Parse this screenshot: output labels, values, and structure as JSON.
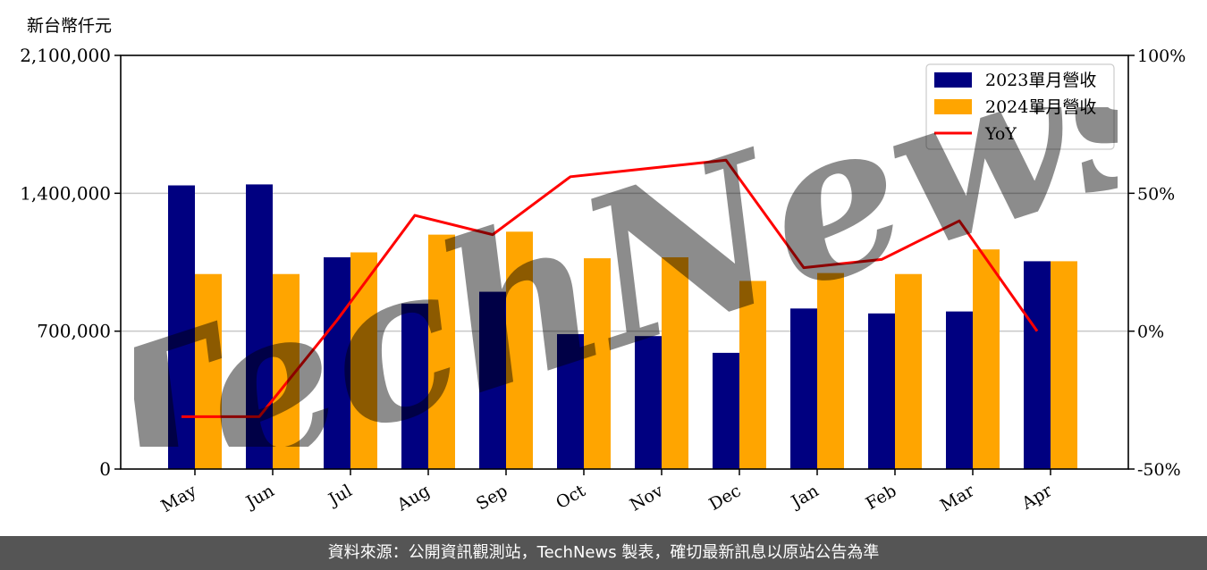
{
  "unit_label": "新台幣仟元",
  "source": "資料來源：公開資訊觀測站，TechNews 製表，確切最新訊息以原站公告為準",
  "watermark": "TechNews",
  "colors": {
    "series_2023": "#000080",
    "series_2024": "#FFA500",
    "yoy": "#FF0000",
    "grid": "#C8C8C8",
    "footer_bg": "#555555",
    "watermark": "#EFC9C9"
  },
  "chart_data": {
    "type": "bar",
    "categories": [
      "May",
      "Jun",
      "Jul",
      "Aug",
      "Sep",
      "Oct",
      "Nov",
      "Dec",
      "Jan",
      "Feb",
      "Mar",
      "Apr"
    ],
    "series": [
      {
        "name": "2023單月營收",
        "type": "bar",
        "axis": "left",
        "values": [
          1440000,
          1445000,
          1075000,
          840000,
          900000,
          685000,
          675000,
          590000,
          815000,
          790000,
          800000,
          1055000
        ]
      },
      {
        "name": "2024單月營收",
        "type": "bar",
        "axis": "left",
        "values": [
          990000,
          990000,
          1100000,
          1190000,
          1205000,
          1070000,
          1075000,
          955000,
          995000,
          990000,
          1115000,
          1055000
        ]
      },
      {
        "name": "YoY",
        "type": "line",
        "axis": "right",
        "values": [
          -31,
          -31,
          4,
          42,
          35,
          56,
          59,
          62,
          23,
          26,
          40,
          0
        ]
      }
    ],
    "y_left": {
      "ylim": [
        0,
        2100000
      ],
      "ticks": [
        "0",
        "700,000",
        "1,400,000",
        "2,100,000"
      ],
      "tick_values": [
        0,
        700000,
        1400000,
        2100000
      ]
    },
    "y_right": {
      "ylim": [
        -50,
        100
      ],
      "ticks": [
        "-50%",
        "0%",
        "50%",
        "100%"
      ],
      "tick_values": [
        -50,
        0,
        50,
        100
      ]
    },
    "grid": true,
    "legend_position": "top-right"
  }
}
